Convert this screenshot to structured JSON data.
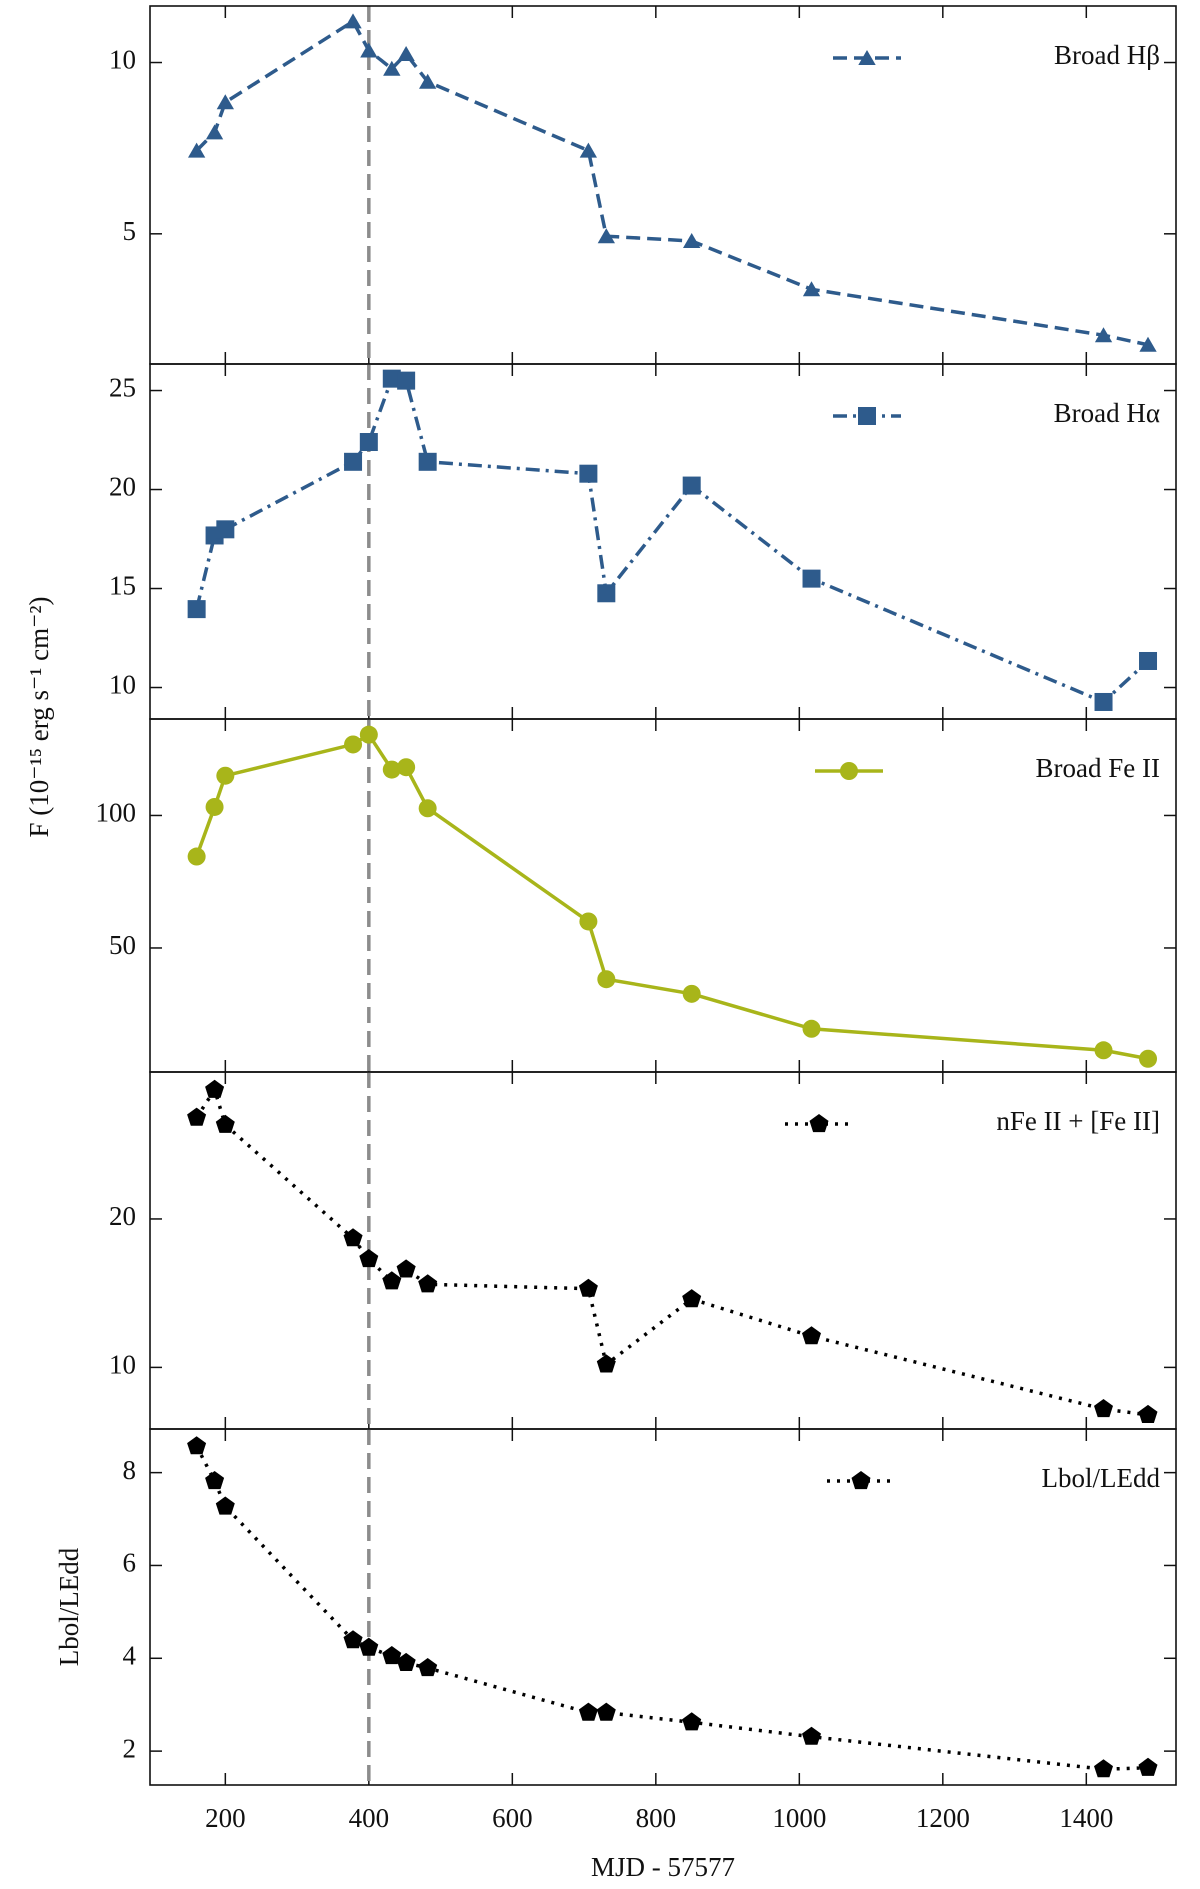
{
  "ylabel": "F (10⁻¹⁵ erg s⁻¹ cm⁻²)",
  "vline_x": 400,
  "chart_data": [
    {
      "type": "line",
      "legend": "upper right",
      "x": [
        160,
        185,
        200,
        378,
        400,
        432,
        452,
        482,
        706,
        731,
        850,
        1017,
        1424,
        1486
      ],
      "series": [
        {
          "name": "Broad Hβ",
          "color": "#2e5b8c",
          "marker": "triangle",
          "linestyle": "dashed",
          "values": [
            7.43,
            7.96,
            8.84,
            11.2,
            10.35,
            9.82,
            10.25,
            9.44,
            7.43,
            4.93,
            4.79,
            3.38,
            2.04,
            1.76
          ]
        }
      ],
      "ylim": [
        1.2,
        11.65
      ],
      "yticks": [
        5,
        10
      ]
    },
    {
      "type": "line",
      "legend": "upper right",
      "x": [
        160,
        185,
        200,
        378,
        400,
        432,
        452,
        482,
        706,
        731,
        850,
        1017,
        1424,
        1486
      ],
      "series": [
        {
          "name": "Broad Hα",
          "color": "#2e5b8c",
          "marker": "square",
          "linestyle": "dashdot",
          "values": [
            13.96,
            17.68,
            17.99,
            21.4,
            22.4,
            25.6,
            25.5,
            21.4,
            20.8,
            14.76,
            20.2,
            15.5,
            9.27,
            11.34
          ]
        }
      ],
      "ylim": [
        8.41,
        26.34
      ],
      "yticks": [
        10,
        15,
        20,
        25
      ]
    },
    {
      "type": "line",
      "legend": "upper right",
      "x": [
        160,
        185,
        200,
        378,
        400,
        432,
        452,
        482,
        706,
        731,
        850,
        1017,
        1424,
        1486
      ],
      "series": [
        {
          "name": "Broad Fe II",
          "color": "#a8b51a",
          "marker": "circle",
          "linestyle": "solid",
          "values": [
            84.5,
            103.2,
            115,
            126.8,
            130.5,
            117.3,
            118.2,
            102.7,
            60,
            38.2,
            32.7,
            19.5,
            11.4,
            8.2
          ]
        }
      ],
      "ylim": [
        3.2,
        136.4
      ],
      "yticks": [
        50,
        100
      ]
    },
    {
      "type": "line",
      "legend": "upper right",
      "x": [
        160,
        185,
        200,
        378,
        400,
        432,
        452,
        482,
        706,
        731,
        850,
        1017,
        1424,
        1486
      ],
      "series": [
        {
          "name": "nFe II + [Fe II]",
          "color": "#000000",
          "marker": "pentagon",
          "linestyle": "dotted",
          "values": [
            26.83,
            28.7,
            26.34,
            18.7,
            17.3,
            15.8,
            16.6,
            15.6,
            15.3,
            10.2,
            14.6,
            12.1,
            7.2,
            6.8
          ]
        }
      ],
      "ylim": [
        5.85,
        29.9
      ],
      "yticks": [
        10,
        20
      ]
    },
    {
      "type": "line",
      "legend": "upper right",
      "ylabel": "Lbol/LEdd",
      "xlabel": "MJD - 57577",
      "x": [
        160,
        185,
        200,
        378,
        400,
        432,
        452,
        482,
        706,
        731,
        850,
        1017,
        1424,
        1486
      ],
      "series": [
        {
          "name": "Lbol/LEdd",
          "color": "#000000",
          "marker": "pentagon",
          "linestyle": "dotted",
          "values": [
            8.57,
            7.82,
            7.27,
            4.39,
            4.23,
            4.05,
            3.9,
            3.79,
            2.83,
            2.83,
            2.62,
            2.31,
            1.61,
            1.64
          ]
        }
      ],
      "ylim": [
        1.27,
        8.94
      ],
      "yticks": [
        2,
        4,
        6,
        8
      ],
      "xlim": [
        95,
        1525
      ],
      "xticks": [
        200,
        400,
        600,
        800,
        1000,
        1200,
        1400
      ]
    }
  ]
}
